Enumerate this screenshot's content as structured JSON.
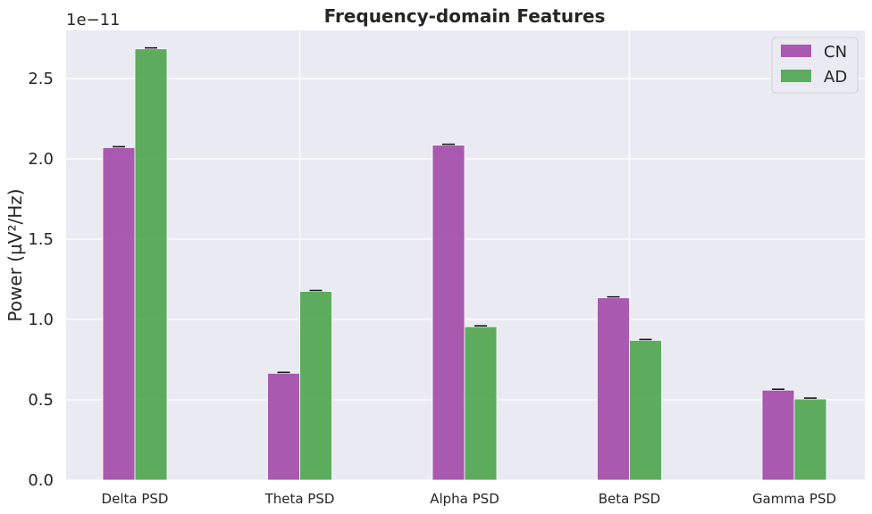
{
  "chart_data": {
    "type": "bar",
    "title": "Frequency-domain Features",
    "xlabel": "",
    "ylabel": "Power (µV²/Hz)",
    "y_offset_label": "1e−11",
    "categories": [
      "Delta PSD",
      "Theta PSD",
      "Alpha PSD",
      "Beta PSD",
      "Gamma PSD"
    ],
    "series": [
      {
        "name": "CN",
        "color": "#a24aa8",
        "values": [
          2.07e-11,
          6.65e-12,
          2.085e-11,
          1.135e-11,
          5.6e-12
        ]
      },
      {
        "name": "AD",
        "color": "#4ea64e",
        "values": [
          2.685e-11,
          1.175e-11,
          9.55e-12,
          8.7e-12,
          5.05e-12
        ]
      }
    ],
    "error_bars": true,
    "ylim": [
      0,
      2.8e-11
    ],
    "yticks": [
      0,
      5e-12,
      1e-11,
      1.5e-11,
      2e-11,
      2.5e-11
    ],
    "ytick_labels": [
      "0.0",
      "0.5",
      "1.0",
      "1.5",
      "2.0",
      "2.5"
    ],
    "grid": true,
    "legend_position": "top-right"
  }
}
